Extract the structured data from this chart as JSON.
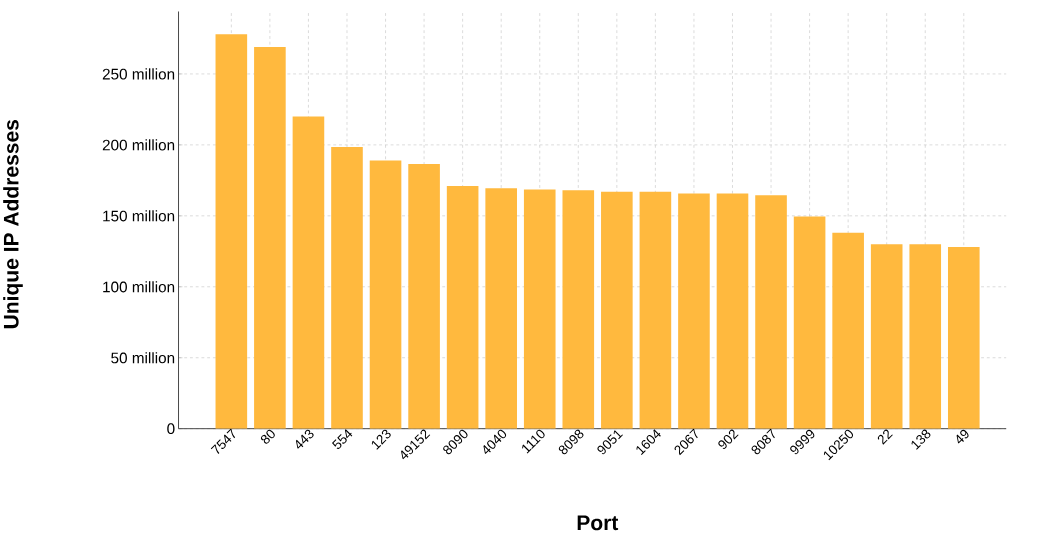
{
  "chart_data": {
    "type": "bar",
    "xlabel": "Port",
    "ylabel": "Unique IP Addresses",
    "categories": [
      "7547",
      "80",
      "443",
      "554",
      "123",
      "49152",
      "8090",
      "4040",
      "1110",
      "8098",
      "9051",
      "1604",
      "2067",
      "902",
      "8087",
      "9999",
      "10250",
      "22",
      "138",
      "49"
    ],
    "values": [
      278,
      269,
      220,
      198.5,
      189,
      186.5,
      171,
      169.5,
      168.5,
      168,
      167,
      167,
      165.7,
      165.7,
      164.5,
      149.5,
      138,
      130,
      130,
      128
    ],
    "color": "#ffb93e",
    "ylim": [
      0,
      294
    ],
    "yticks": [
      0,
      {
        "value": 50,
        "label": "50 million"
      },
      {
        "value": 100,
        "label": "100 million"
      },
      {
        "value": 150,
        "label": "150 million"
      },
      {
        "value": 200,
        "label": "200 million"
      },
      {
        "value": 250,
        "label": "250 million"
      }
    ],
    "grid": true
  }
}
